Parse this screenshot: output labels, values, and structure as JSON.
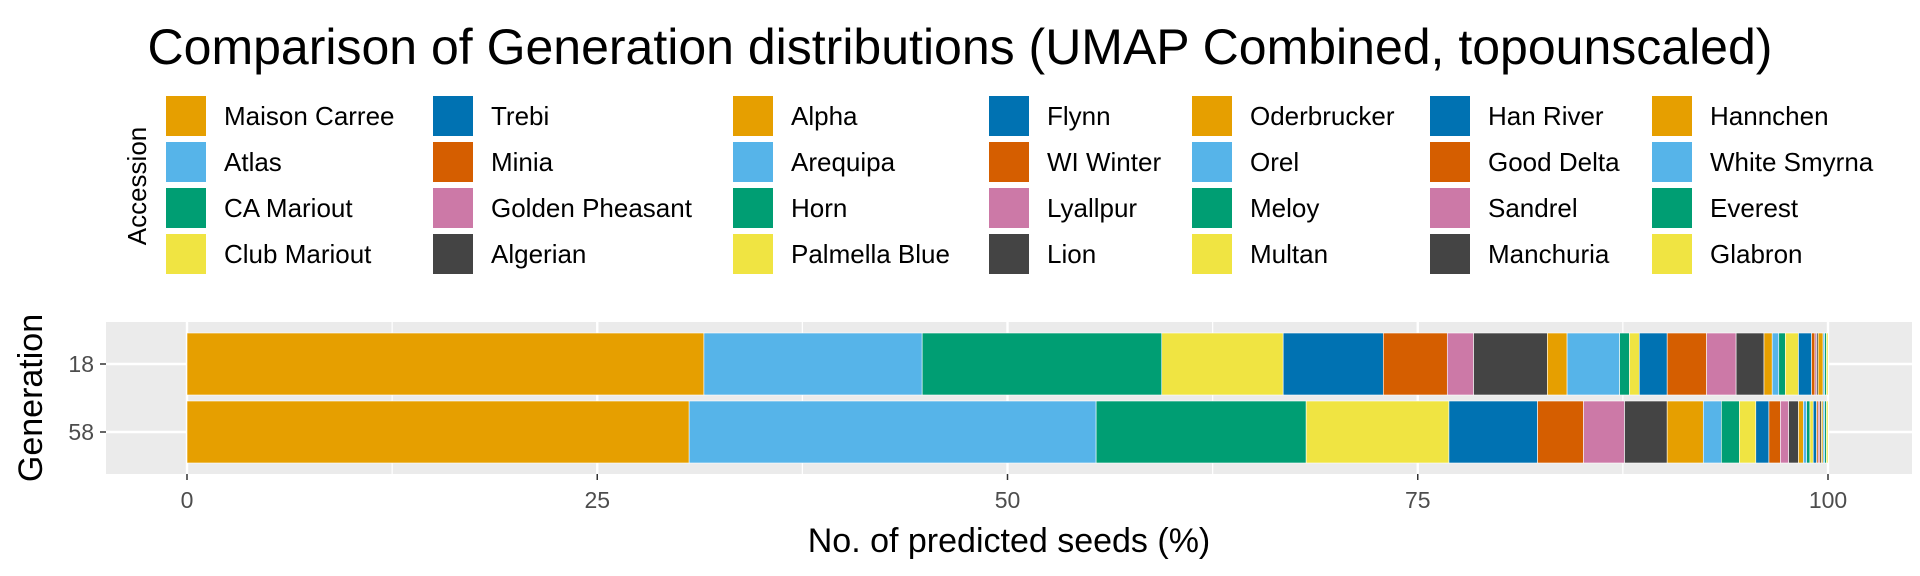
{
  "chart_data": {
    "type": "bar",
    "orientation": "horizontal",
    "stacked": true,
    "title": "Comparison of Generation distributions (UMAP Combined, topounscaled)",
    "xlabel": "No. of predicted seeds (%)",
    "ylabel": "Generation",
    "xlim": [
      0,
      100
    ],
    "x_ticks": [
      "0",
      "25",
      "50",
      "75",
      "100"
    ],
    "categories": [
      "18",
      "58"
    ],
    "legend_title": "Accession",
    "legend_position": "top",
    "grid": true,
    "series": [
      {
        "name": "Maison Carree",
        "color": "#E69F00",
        "values": [
          31.5,
          30.6
        ]
      },
      {
        "name": "Atlas",
        "color": "#56B4E9",
        "values": [
          13.3,
          24.8
        ]
      },
      {
        "name": "CA Mariout",
        "color": "#009E73",
        "values": [
          14.6,
          12.8
        ]
      },
      {
        "name": "Club Mariout",
        "color": "#F0E442",
        "values": [
          7.4,
          8.7
        ]
      },
      {
        "name": "Trebi",
        "color": "#0072B2",
        "values": [
          6.1,
          5.4
        ]
      },
      {
        "name": "Minia",
        "color": "#D55E00",
        "values": [
          3.9,
          2.8
        ]
      },
      {
        "name": "Golden Pheasant",
        "color": "#CC79A7",
        "values": [
          1.6,
          2.5
        ]
      },
      {
        "name": "Algerian",
        "color": "#444444",
        "values": [
          4.5,
          2.6
        ]
      },
      {
        "name": "Alpha",
        "color": "#E69F00",
        "values": [
          1.2,
          2.2
        ]
      },
      {
        "name": "Arequipa",
        "color": "#56B4E9",
        "values": [
          3.2,
          1.1
        ]
      },
      {
        "name": "Horn",
        "color": "#009E73",
        "values": [
          0.6,
          1.1
        ]
      },
      {
        "name": "Palmella Blue",
        "color": "#F0E442",
        "values": [
          0.6,
          1.0
        ]
      },
      {
        "name": "Flynn",
        "color": "#0072B2",
        "values": [
          1.7,
          0.8
        ]
      },
      {
        "name": "WI Winter",
        "color": "#D55E00",
        "values": [
          2.4,
          0.7
        ]
      },
      {
        "name": "Lyallpur",
        "color": "#CC79A7",
        "values": [
          1.8,
          0.5
        ]
      },
      {
        "name": "Lion",
        "color": "#444444",
        "values": [
          1.7,
          0.6
        ]
      },
      {
        "name": "Oderbrucker",
        "color": "#E69F00",
        "values": [
          0.5,
          0.3
        ]
      },
      {
        "name": "Orel",
        "color": "#56B4E9",
        "values": [
          0.4,
          0.2
        ]
      },
      {
        "name": "Meloy",
        "color": "#009E73",
        "values": [
          0.4,
          0.2
        ]
      },
      {
        "name": "Multan",
        "color": "#F0E442",
        "values": [
          0.8,
          0.2
        ]
      },
      {
        "name": "Han River",
        "color": "#0072B2",
        "values": [
          0.8,
          0.2
        ]
      },
      {
        "name": "Good Delta",
        "color": "#D55E00",
        "values": [
          0.2,
          0.1
        ]
      },
      {
        "name": "Sandrel",
        "color": "#CC79A7",
        "values": [
          0.1,
          0.1
        ]
      },
      {
        "name": "Manchuria",
        "color": "#444444",
        "values": [
          0.1,
          0.1
        ]
      },
      {
        "name": "Hannchen",
        "color": "#E69F00",
        "values": [
          0.3,
          0.1
        ]
      },
      {
        "name": "White Smyrna",
        "color": "#56B4E9",
        "values": [
          0.1,
          0.1
        ]
      },
      {
        "name": "Everest",
        "color": "#009E73",
        "values": [
          0.1,
          0.1
        ]
      },
      {
        "name": "Glabron",
        "color": "#F0E442",
        "values": [
          0.1,
          0.1
        ]
      }
    ]
  }
}
